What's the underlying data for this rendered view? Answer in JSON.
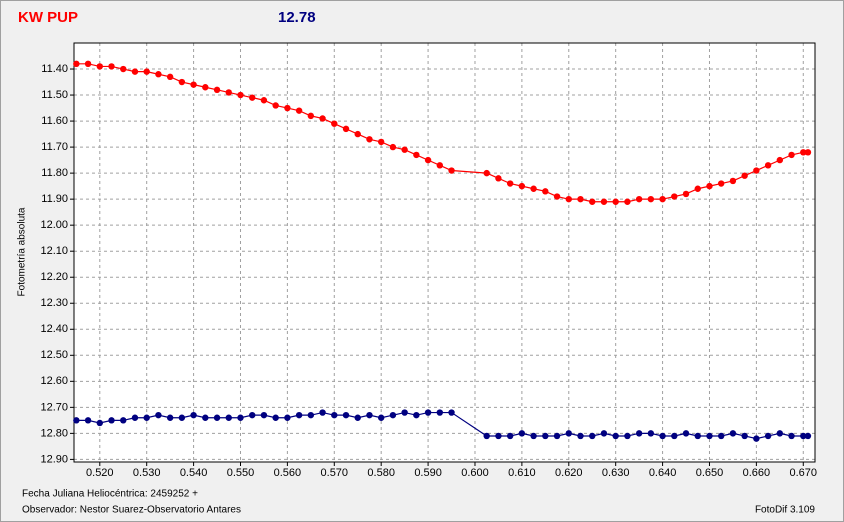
{
  "chart_data": {
    "type": "line",
    "title": "KW PUP",
    "subtitle": "12.78",
    "ylabel": "Fotometría absoluta",
    "xlabel": "Fecha Juliana Heliocéntrica: 2459252 +",
    "observer": "Observador: Nestor Suarez-Observatorio Antares",
    "software": "FotoDif 3.109",
    "grid": true,
    "y_inverted": true,
    "xlim": [
      0.5145,
      0.6725
    ],
    "ylim": [
      11.3,
      12.91
    ],
    "xticks": [
      {
        "value": 0.52,
        "label": "0.520"
      },
      {
        "value": 0.53,
        "label": "0.530"
      },
      {
        "value": 0.54,
        "label": "0.540"
      },
      {
        "value": 0.55,
        "label": "0.550"
      },
      {
        "value": 0.56,
        "label": "0.560"
      },
      {
        "value": 0.57,
        "label": "0.570"
      },
      {
        "value": 0.58,
        "label": "0.580"
      },
      {
        "value": 0.59,
        "label": "0.590"
      },
      {
        "value": 0.6,
        "label": "0.600"
      },
      {
        "value": 0.61,
        "label": "0.610"
      },
      {
        "value": 0.62,
        "label": "0.620"
      },
      {
        "value": 0.63,
        "label": "0.630"
      },
      {
        "value": 0.64,
        "label": "0.640"
      },
      {
        "value": 0.65,
        "label": "0.650"
      },
      {
        "value": 0.66,
        "label": "0.660"
      },
      {
        "value": 0.67,
        "label": "0.670"
      }
    ],
    "yticks": [
      {
        "value": 11.4,
        "label": "11.40"
      },
      {
        "value": 11.5,
        "label": "11.50"
      },
      {
        "value": 11.6,
        "label": "11.60"
      },
      {
        "value": 11.7,
        "label": "11.70"
      },
      {
        "value": 11.8,
        "label": "11.80"
      },
      {
        "value": 11.9,
        "label": "11.90"
      },
      {
        "value": 12,
        "label": "12.00"
      },
      {
        "value": 12.1,
        "label": "12.10"
      },
      {
        "value": 12.2,
        "label": "12.20"
      },
      {
        "value": 12.3,
        "label": "12.30"
      },
      {
        "value": 12.4,
        "label": "12.40"
      },
      {
        "value": 12.5,
        "label": "12.50"
      },
      {
        "value": 12.6,
        "label": "12.60"
      },
      {
        "value": 12.7,
        "label": "12.70"
      },
      {
        "value": 12.8,
        "label": "12.80"
      },
      {
        "value": 12.9,
        "label": "12.90"
      }
    ],
    "x": [
      0.515,
      0.5175,
      0.52,
      0.5225,
      0.525,
      0.5275,
      0.53,
      0.5325,
      0.535,
      0.5375,
      0.54,
      0.5425,
      0.545,
      0.5475,
      0.55,
      0.5525,
      0.555,
      0.5575,
      0.56,
      0.5625,
      0.565,
      0.5675,
      0.57,
      0.5725,
      0.575,
      0.5775,
      0.58,
      0.5825,
      0.585,
      0.5875,
      0.59,
      0.5925,
      0.595,
      0.6025,
      0.605,
      0.6075,
      0.61,
      0.6125,
      0.615,
      0.6175,
      0.62,
      0.6225,
      0.625,
      0.6275,
      0.63,
      0.6325,
      0.635,
      0.6375,
      0.64,
      0.6425,
      0.645,
      0.6475,
      0.65,
      0.6525,
      0.655,
      0.6575,
      0.66,
      0.6625,
      0.665,
      0.6675,
      0.67,
      0.671
    ],
    "series": [
      {
        "color": "#ff0000",
        "values": [
          11.38,
          11.38,
          11.39,
          11.39,
          11.4,
          11.41,
          11.41,
          11.42,
          11.43,
          11.45,
          11.46,
          11.47,
          11.48,
          11.49,
          11.5,
          11.51,
          11.52,
          11.54,
          11.55,
          11.56,
          11.58,
          11.59,
          11.61,
          11.63,
          11.65,
          11.67,
          11.68,
          11.7,
          11.71,
          11.73,
          11.75,
          11.77,
          11.79,
          11.8,
          11.82,
          11.84,
          11.85,
          11.86,
          11.87,
          11.89,
          11.9,
          11.9,
          11.91,
          11.91,
          11.91,
          11.91,
          11.9,
          11.9,
          11.9,
          11.89,
          11.88,
          11.86,
          11.85,
          11.84,
          11.83,
          11.81,
          11.79,
          11.77,
          11.75,
          11.73,
          11.72,
          11.72
        ]
      },
      {
        "color": "#000080",
        "values": [
          12.75,
          12.75,
          12.76,
          12.75,
          12.75,
          12.74,
          12.74,
          12.73,
          12.74,
          12.74,
          12.73,
          12.74,
          12.74,
          12.74,
          12.74,
          12.73,
          12.73,
          12.74,
          12.74,
          12.73,
          12.73,
          12.72,
          12.73,
          12.73,
          12.74,
          12.73,
          12.74,
          12.73,
          12.72,
          12.73,
          12.72,
          12.72,
          12.72,
          12.81,
          12.81,
          12.81,
          12.8,
          12.81,
          12.81,
          12.81,
          12.8,
          12.81,
          12.81,
          12.8,
          12.81,
          12.81,
          12.8,
          12.8,
          12.81,
          12.81,
          12.8,
          12.81,
          12.81,
          12.81,
          12.8,
          12.81,
          12.82,
          12.81,
          12.8,
          12.81,
          12.81,
          12.81
        ]
      }
    ]
  }
}
